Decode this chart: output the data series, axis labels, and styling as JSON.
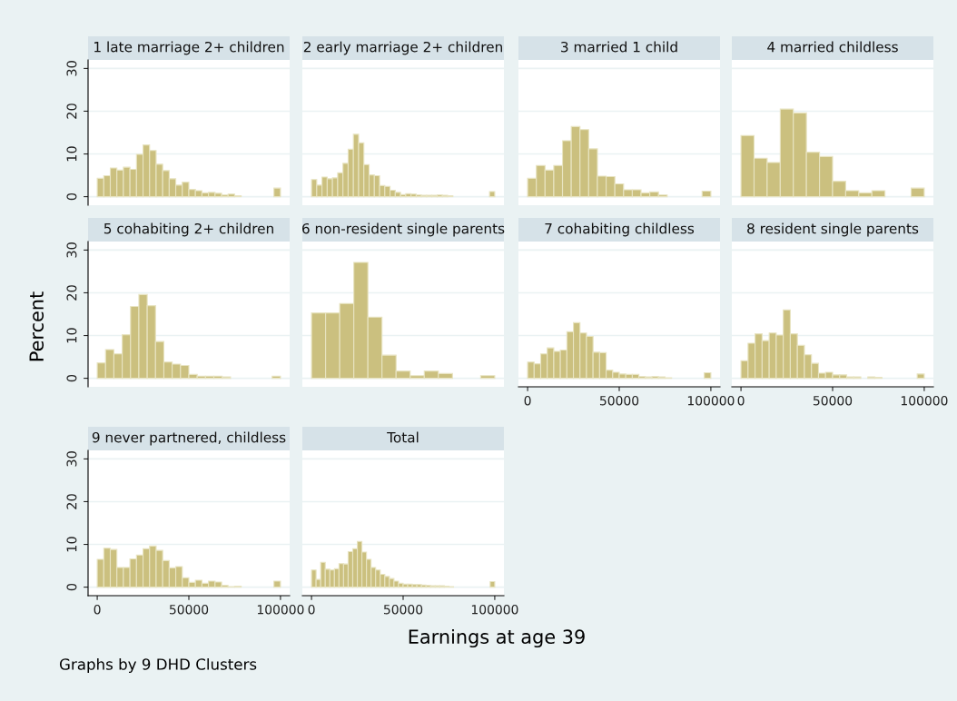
{
  "chart_data": [
    {
      "type": "histogram",
      "title": "1 late marriage 2+ children",
      "ylabel": "Percent",
      "annotations": [
        "Graphs by 9 DHD Clusters"
      ],
      "color": "#cbc07f",
      "grid": "y",
      "tick_labels": "y",
      "xlim": [
        -5000,
        105000
      ],
      "xticks": [
        0,
        50000,
        100000
      ],
      "ylim": [
        -2,
        32
      ],
      "yticks": [
        0,
        10,
        20,
        30
      ],
      "bins": [
        0,
        3571.4,
        7142.9,
        10714.3,
        14285.7,
        17857.1,
        21428.6,
        25000,
        28571.4,
        32142.9,
        35714.3,
        39285.7,
        42857.1,
        46428.6,
        50000,
        53571.4,
        57142.9,
        60714.3,
        64285.7,
        67857.1,
        71428.6,
        75000,
        78571.4,
        82142.9,
        85714.3,
        89285.7,
        92857.1,
        96428.6,
        100000
      ],
      "values": [
        4.3,
        4.9,
        6.7,
        6.2,
        6.9,
        6.4,
        9.9,
        12.1,
        10.8,
        7.6,
        6.1,
        4.2,
        2.7,
        3.4,
        1.7,
        1.4,
        0.9,
        1.0,
        0.8,
        0.4,
        0.6,
        0.2,
        0,
        0,
        0,
        0,
        0,
        2.0
      ]
    },
    {
      "type": "histogram",
      "title": "2 early marriage 2+ children",
      "color": "#cbc07f",
      "grid": "y",
      "tick_labels": false,
      "xlim": [
        -5000,
        105000
      ],
      "xticks": [
        0,
        50000,
        100000
      ],
      "ylim": [
        -2,
        32
      ],
      "yticks": [
        0,
        10,
        20,
        30
      ],
      "bins": [
        0,
        2857.1,
        5714.3,
        8571.4,
        11428.6,
        14285.7,
        17142.9,
        20000,
        22857.1,
        25714.3,
        28571.4,
        31428.6,
        34285.7,
        37142.9,
        40000,
        42857.1,
        45714.3,
        48571.4,
        51428.6,
        54285.7,
        57142.9,
        60000,
        62857.1,
        65714.3,
        68571.4,
        71428.6,
        74285.7,
        77142.9,
        80000,
        82857.1,
        85714.3,
        88571.4,
        91428.6,
        94285.7,
        97142.9,
        100000
      ],
      "values": [
        4.0,
        2.7,
        4.6,
        4.2,
        4.4,
        5.6,
        7.8,
        11.1,
        14.6,
        12.6,
        7.5,
        5.1,
        4.9,
        2.6,
        2.4,
        1.5,
        1.0,
        0.5,
        0.7,
        0.6,
        0.4,
        0.3,
        0.3,
        0.3,
        0.4,
        0.3,
        0.2,
        0,
        0,
        0,
        0,
        0,
        0,
        0,
        1.2
      ]
    },
    {
      "type": "histogram",
      "title": "3 married 1 child",
      "color": "#cbc07f",
      "grid": "y",
      "tick_labels": false,
      "xlim": [
        -5000,
        105000
      ],
      "xticks": [
        0,
        50000,
        100000
      ],
      "ylim": [
        -2,
        32
      ],
      "yticks": [
        0,
        10,
        20,
        30
      ],
      "bins": [
        0,
        4761.9,
        9523.8,
        14285.7,
        19047.6,
        23809.5,
        28571.4,
        33333.3,
        38095.2,
        42857.1,
        47619.0,
        52381.0,
        57142.9,
        61904.8,
        66666.7,
        71428.6,
        76190.5,
        80952.4,
        85714.3,
        90476.2,
        95238.1,
        100000
      ],
      "values": [
        4.3,
        7.3,
        6.2,
        7.3,
        13.1,
        16.4,
        15.7,
        11.2,
        4.8,
        4.7,
        3.0,
        1.6,
        1.6,
        0.9,
        1.1,
        0.4,
        0,
        0,
        0,
        0,
        1.3
      ]
    },
    {
      "type": "histogram",
      "title": "4 married childless",
      "color": "#cbc07f",
      "grid": "y",
      "tick_labels": false,
      "xlim": [
        -5000,
        105000
      ],
      "xticks": [
        0,
        50000,
        100000
      ],
      "ylim": [
        -2,
        32
      ],
      "yticks": [
        0,
        10,
        20,
        30
      ],
      "bins": [
        0,
        7142.9,
        14285.7,
        21428.6,
        28571.4,
        35714.3,
        42857.1,
        50000,
        57142.9,
        64285.7,
        71428.6,
        78571.4,
        85714.3,
        92857.1,
        100000
      ],
      "values": [
        14.3,
        9.0,
        8.0,
        20.5,
        19.6,
        10.4,
        9.4,
        3.6,
        1.4,
        0.9,
        1.4,
        0,
        0,
        2.0
      ]
    },
    {
      "type": "histogram",
      "title": "5 cohabiting 2+ children",
      "color": "#cbc07f",
      "grid": "y",
      "tick_labels": "y",
      "xlim": [
        -5000,
        105000
      ],
      "xticks": [
        0,
        50000,
        100000
      ],
      "ylim": [
        -2,
        32
      ],
      "yticks": [
        0,
        10,
        20,
        30
      ],
      "bins": [
        0,
        4545.5,
        9090.9,
        13636.4,
        18181.8,
        22727.3,
        27272.7,
        31818.2,
        36363.6,
        40909.1,
        45454.5,
        50000,
        54545.5,
        59090.9,
        63636.4,
        68181.8,
        72727.3,
        77272.7,
        81818.2,
        86363.6,
        90909.1,
        95454.5,
        100000
      ],
      "values": [
        3.6,
        6.7,
        5.7,
        10.2,
        16.8,
        19.6,
        17.0,
        8.6,
        3.8,
        3.3,
        3.0,
        0.9,
        0.5,
        0.5,
        0.5,
        0.3,
        0,
        0,
        0,
        0,
        0,
        0.5
      ]
    },
    {
      "type": "histogram",
      "title": "6 non-resident single parents",
      "color": "#cbc07f",
      "grid": "y",
      "tick_labels": false,
      "xlim": [
        -5000,
        105000
      ],
      "xticks": [
        0,
        50000,
        100000
      ],
      "ylim": [
        -2,
        32
      ],
      "yticks": [
        0,
        10,
        20,
        30
      ],
      "bins": [
        0,
        7692.3,
        15384.6,
        23076.9,
        30769.2,
        38461.5,
        46153.8,
        53846.2,
        61538.5,
        69230.8,
        76923.1,
        84615.4,
        92307.7,
        100000
      ],
      "values": [
        15.3,
        15.3,
        17.5,
        27.1,
        14.3,
        5.4,
        1.7,
        0.6,
        1.7,
        1.1,
        0,
        0,
        0.6
      ]
    },
    {
      "type": "histogram",
      "title": "7 cohabiting childless",
      "color": "#cbc07f",
      "grid": "y",
      "tick_labels": "x",
      "xlim": [
        -5000,
        105000
      ],
      "xticks": [
        0,
        50000,
        100000
      ],
      "ylim": [
        -2,
        32
      ],
      "yticks": [
        0,
        10,
        20,
        30
      ],
      "bins": [
        0,
        3571.4,
        7142.9,
        10714.3,
        14285.7,
        17857.1,
        21428.6,
        25000,
        28571.4,
        32142.9,
        35714.3,
        39285.7,
        42857.1,
        46428.6,
        50000,
        53571.4,
        57142.9,
        60714.3,
        64285.7,
        67857.1,
        71428.6,
        75000,
        78571.4,
        82142.9,
        85714.3,
        89285.7,
        92857.1,
        96428.6,
        100000
      ],
      "values": [
        3.8,
        3.4,
        5.7,
        7.1,
        6.3,
        6.6,
        10.9,
        13.0,
        10.6,
        9.8,
        6.1,
        6.0,
        1.9,
        1.4,
        1.0,
        0.9,
        0.9,
        0.4,
        0.3,
        0.4,
        0.3,
        0.1,
        0,
        0,
        0,
        0,
        0,
        1.3
      ]
    },
    {
      "type": "histogram",
      "title": "8 resident single parents",
      "color": "#cbc07f",
      "grid": "y",
      "tick_labels": "x",
      "xlim": [
        -5000,
        105000
      ],
      "xticks": [
        0,
        50000,
        100000
      ],
      "ylim": [
        -2,
        32
      ],
      "yticks": [
        0,
        10,
        20,
        30
      ],
      "bins": [
        0,
        3846.2,
        7692.3,
        11538.5,
        15384.6,
        19230.8,
        23076.9,
        26923.1,
        30769.2,
        34615.4,
        38461.5,
        42307.7,
        46153.8,
        50000,
        53846.2,
        57692.3,
        61538.5,
        65384.6,
        69230.8,
        73076.9,
        76923.1,
        80769.2,
        84615.4,
        88461.5,
        92307.7,
        96153.8,
        100000
      ],
      "values": [
        4.1,
        8.2,
        10.4,
        8.8,
        10.6,
        10.1,
        16.0,
        10.4,
        7.7,
        5.5,
        3.5,
        1.2,
        1.4,
        0.8,
        0.8,
        0.3,
        0.3,
        0,
        0.3,
        0.2,
        0,
        0,
        0,
        0,
        0,
        1.0
      ]
    },
    {
      "type": "histogram",
      "title": "9 never partnered, childless",
      "color": "#cbc07f",
      "grid": "y",
      "xlim": [
        -5000,
        105000
      ],
      "xticks": [
        0,
        50000,
        100000
      ],
      "ylim": [
        -2,
        32
      ],
      "yticks": [
        0,
        10,
        20,
        30
      ],
      "bins": [
        0,
        3571.4,
        7142.9,
        10714.3,
        14285.7,
        17857.1,
        21428.6,
        25000,
        28571.4,
        32142.9,
        35714.3,
        39285.7,
        42857.1,
        46428.6,
        50000,
        53571.4,
        57142.9,
        60714.3,
        64285.7,
        67857.1,
        71428.6,
        75000,
        78571.4,
        82142.9,
        85714.3,
        89285.7,
        92857.1,
        96428.6,
        100000
      ],
      "values": [
        6.5,
        9.1,
        8.8,
        4.6,
        4.6,
        6.6,
        7.5,
        9.0,
        9.6,
        8.6,
        6.2,
        4.5,
        4.8,
        2.2,
        1.1,
        1.6,
        0.9,
        1.4,
        1.2,
        0.4,
        0.1,
        0.2,
        0,
        0,
        0,
        0,
        0,
        1.4
      ]
    },
    {
      "type": "histogram",
      "title": "Total",
      "xlabel": "Earnings at age 39",
      "color": "#cbc07f",
      "grid": "y",
      "tick_labels": "x",
      "xlim": [
        -5000,
        105000
      ],
      "xticks": [
        0,
        50000,
        100000
      ],
      "ylim": [
        -2,
        32
      ],
      "yticks": [
        0,
        10,
        20,
        30
      ],
      "bins": [
        0,
        2500,
        5000,
        7500,
        10000,
        12500,
        15000,
        17500,
        20000,
        22500,
        25000,
        27500,
        30000,
        32500,
        35000,
        37500,
        40000,
        42500,
        45000,
        47500,
        50000,
        52500,
        55000,
        57500,
        60000,
        62500,
        65000,
        67500,
        70000,
        72500,
        75000,
        77500,
        80000,
        82500,
        85000,
        87500,
        90000,
        92500,
        95000,
        97500,
        100000
      ],
      "values": [
        4.0,
        1.8,
        5.8,
        4.2,
        4.0,
        4.3,
        5.5,
        5.4,
        8.3,
        9.0,
        10.7,
        8.2,
        6.5,
        4.6,
        4.0,
        3.0,
        2.5,
        2.0,
        1.4,
        0.9,
        0.7,
        0.7,
        0.6,
        0.6,
        0.5,
        0.4,
        0.3,
        0.3,
        0.3,
        0.2,
        0.1,
        0,
        0,
        0,
        0,
        0,
        0,
        0,
        0,
        1.3
      ]
    }
  ]
}
